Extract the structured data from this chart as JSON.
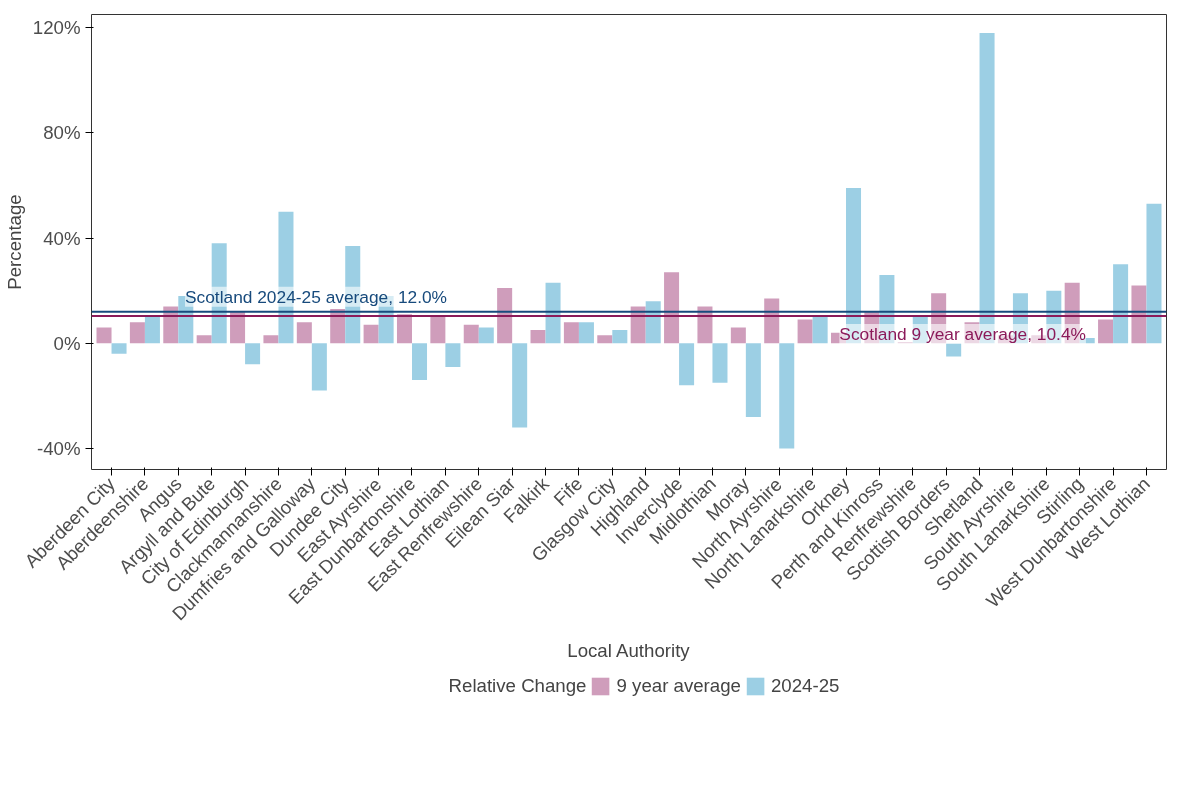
{
  "chart_data": {
    "type": "bar",
    "xlabel": "Local Authority",
    "ylabel": "Percentage",
    "legend_title": "Relative Change",
    "legend": "bottom",
    "grid": false,
    "categories": [
      "Aberdeen City",
      "Aberdeenshire",
      "Angus",
      "Argyll and Bute",
      "City of Edinburgh",
      "Clackmannanshire",
      "Dumfries and Galloway",
      "Dundee City",
      "East Ayrshire",
      "East Dunbartonshire",
      "East Lothian",
      "East Renfrewshire",
      "Eilean Siar",
      "Falkirk",
      "Fife",
      "Glasgow City",
      "Highland",
      "Inverclyde",
      "Midlothian",
      "Moray",
      "North Ayrshire",
      "North Lanarkshire",
      "Orkney",
      "Perth and Kinross",
      "Renfrewshire",
      "Scottish Borders",
      "Shetland",
      "South Ayrshire",
      "South Lanarkshire",
      "Stirling",
      "West Dunbartonshire",
      "West Lothian"
    ],
    "series": [
      {
        "name": "9 year average",
        "color": "#cf9dbb",
        "values": [
          6,
          8,
          14,
          3,
          12,
          3,
          8,
          13,
          7,
          11,
          10,
          7,
          21,
          5,
          8,
          3,
          14,
          27,
          14,
          6,
          17,
          9,
          4,
          12,
          0.5,
          19,
          8,
          3,
          3,
          23,
          9,
          22
        ]
      },
      {
        "name": "2024-25",
        "color": "#9ccfe4",
        "values": [
          -4,
          10,
          18,
          38,
          -8,
          50,
          -18,
          37,
          18,
          -14,
          -9,
          6,
          -32,
          23,
          8,
          5,
          16,
          -16,
          -15,
          -28,
          -40,
          10,
          59,
          26,
          10,
          -5,
          118,
          19,
          20,
          2,
          30,
          53
        ]
      }
    ],
    "ylim": [
      -48,
      125
    ],
    "yticks": [
      {
        "value": -40,
        "label": "-40%"
      },
      {
        "value": 0,
        "label": "0%"
      },
      {
        "value": 40,
        "label": "40%"
      },
      {
        "value": 80,
        "label": "80%"
      },
      {
        "value": 120,
        "label": "120%"
      }
    ],
    "ref_lines": [
      {
        "axis": "y",
        "value": 12.0,
        "label": "Scotland 2024-25 average, 12.0%",
        "color": "#174a7c"
      },
      {
        "axis": "y",
        "value": 10.4,
        "label": "Scotland 9 year average, 10.4%",
        "color": "#8b1a5a"
      }
    ]
  }
}
